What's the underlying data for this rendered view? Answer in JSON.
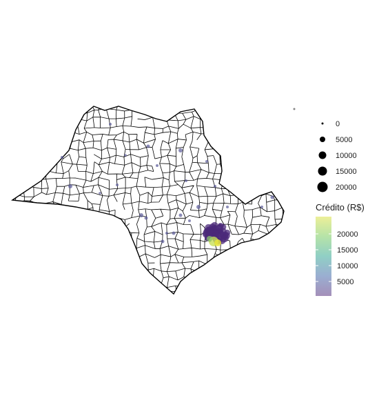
{
  "map": {
    "region": "São Paulo state municipalities",
    "boundary_color": "#000000",
    "fill_color": "#ffffff",
    "point_color_scale": [
      "#440154",
      "#3b528b",
      "#21908c",
      "#5dc863",
      "#fde725"
    ],
    "point_opacity": 0.5
  },
  "legend_size": {
    "title": "",
    "entries": [
      {
        "label": "0",
        "value": 0
      },
      {
        "label": "5000",
        "value": 5000
      },
      {
        "label": "10000",
        "value": 10000
      },
      {
        "label": "15000",
        "value": 15000
      },
      {
        "label": "20000",
        "value": 20000
      }
    ]
  },
  "legend_color": {
    "title": "Crédito (R$)",
    "ticks": [
      {
        "label": "20000",
        "value": 20000
      },
      {
        "label": "15000",
        "value": 15000
      },
      {
        "label": "10000",
        "value": 10000
      },
      {
        "label": "5000",
        "value": 5000
      }
    ],
    "range": [
      0,
      23000
    ],
    "palette": [
      "#440154",
      "#3b528b",
      "#21908c",
      "#5dc863",
      "#fde725"
    ]
  }
}
